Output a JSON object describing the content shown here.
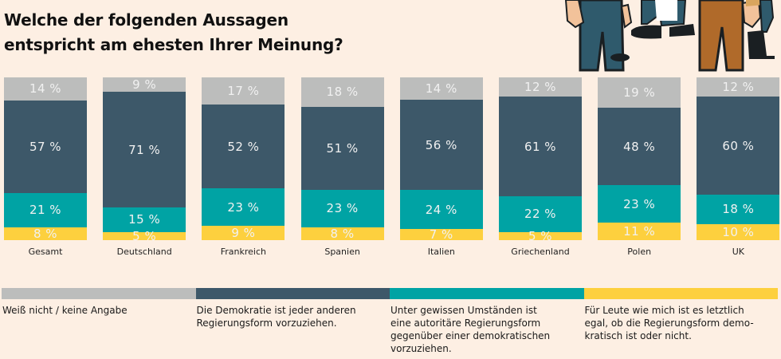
{
  "chart_data": {
    "type": "bar",
    "stacked": true,
    "title": "Welche der folgenden Aussagen entspricht am ehesten Ihrer Meinung?",
    "title_lines": [
      "Welche der folgenden Aussagen",
      "entspricht am ehesten Ihrer Meinung?"
    ],
    "xlabel": "",
    "ylabel": "",
    "ylim": [
      0,
      100
    ],
    "unit": "%",
    "categories": [
      "Gesamt",
      "Deutschland",
      "Frankreich",
      "Spanien",
      "Italien",
      "Griechenland",
      "Polen",
      "UK"
    ],
    "series": [
      {
        "key": "gray",
        "name": "Weiß nicht / keine Angabe",
        "color": "#bcbdbc",
        "values": [
          14,
          9,
          17,
          18,
          14,
          12,
          19,
          12
        ]
      },
      {
        "key": "navy",
        "name": "Die Demokratie ist jeder anderen Regierungsform vorzuziehen.",
        "color": "#3d5869",
        "values": [
          57,
          71,
          52,
          51,
          56,
          61,
          48,
          60
        ]
      },
      {
        "key": "teal",
        "name": "Unter gewissen Umständen ist eine autoritäre Regierungsform gegenüber einer demokratischen vorzuziehen.",
        "color": "#00a3a4",
        "values": [
          21,
          15,
          23,
          23,
          24,
          22,
          23,
          18
        ]
      },
      {
        "key": "yellow",
        "name": "Für Leute wie mich ist es letztlich egal, ob die Regierungsform demokratisch ist oder nicht.",
        "color": "#fdd03e",
        "values": [
          8,
          5,
          9,
          8,
          7,
          5,
          11,
          10
        ]
      }
    ],
    "legend": {
      "placement": "bottom",
      "items": [
        {
          "color": "#bcbdbc",
          "lines": [
            "Weiß nicht / keine Angabe"
          ]
        },
        {
          "color": "#3d5869",
          "lines": [
            "Die Demokratie ist jeder anderen",
            "Regierungsform vorzuziehen."
          ]
        },
        {
          "color": "#00a3a4",
          "lines": [
            "Unter gewissen Umständen ist",
            "eine autoritäre Regierungsform",
            "gegenüber einer demokratischen",
            "vorzuziehen."
          ]
        },
        {
          "color": "#fdd03e",
          "lines": [
            "Für Leute wie mich ist es letztlich",
            "egal, ob die Regierungsform demo-",
            "kratisch ist oder nicht."
          ]
        }
      ]
    },
    "grid": false
  },
  "illustration": {
    "icon": "people-legs-illustration"
  }
}
